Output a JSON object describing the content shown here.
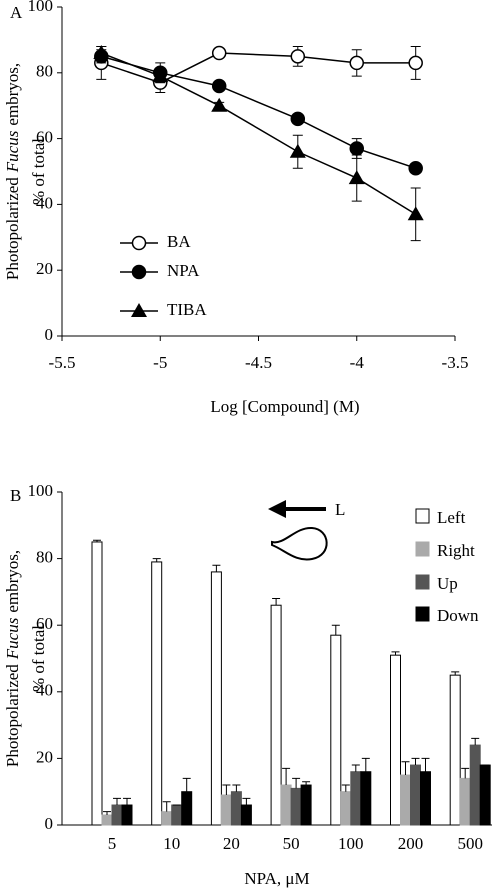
{
  "chart_data": [
    {
      "type": "line",
      "panel_label": "A",
      "ylabel": [
        "Photopolarized",
        "Fucus",
        "embryos,",
        "% of total"
      ],
      "xlabel": "Log [Compound] (M)",
      "x": [
        -5.3,
        -5,
        -4.7,
        -4.3,
        -4,
        -3.7
      ],
      "series": [
        {
          "name": "BA",
          "color": "#000000",
          "marker": "open-circle",
          "values": [
            83,
            77,
            86,
            85,
            83,
            83
          ],
          "errors": [
            5,
            3,
            1,
            3,
            4,
            5
          ]
        },
        {
          "name": "NPA",
          "color": "#000000",
          "marker": "circle",
          "values": [
            85,
            80,
            76,
            66,
            57,
            51
          ],
          "errors": [
            2,
            3,
            1,
            1,
            3,
            1
          ]
        },
        {
          "name": "TIBA",
          "color": "#000000",
          "marker": "triangle",
          "values": [
            86,
            79,
            70,
            56,
            48,
            37
          ],
          "errors": [
            2,
            2,
            1,
            5,
            7,
            8
          ]
        }
      ],
      "xlim": [
        -5.5,
        -3.5
      ],
      "xticks": [
        -5.5,
        -5,
        -4.5,
        -4,
        -3.5
      ],
      "ylim": [
        0,
        100
      ],
      "yticks": [
        0,
        20,
        40,
        60,
        80,
        100
      ]
    },
    {
      "type": "bar",
      "panel_label": "B",
      "ylabel": [
        "Photopolarized",
        "Fucus",
        "embryos,",
        "% of total"
      ],
      "xlabel": "NPA,  μM",
      "annotation": "L",
      "categories": [
        "5",
        "10",
        "20",
        "50",
        "100",
        "200",
        "500"
      ],
      "series": [
        {
          "name": "Left",
          "color": "#ffffff",
          "values": [
            85,
            79,
            76,
            66,
            57,
            51,
            45
          ],
          "errors": [
            0.5,
            1,
            2,
            2,
            3,
            1,
            1
          ]
        },
        {
          "name": "Right",
          "color": "#aaaaaa",
          "values": [
            3,
            4,
            9,
            12,
            10,
            15,
            14
          ],
          "errors": [
            1,
            3,
            3,
            5,
            2,
            4,
            3
          ]
        },
        {
          "name": "Up",
          "color": "#555555",
          "values": [
            6,
            6,
            10,
            11,
            16,
            18,
            24
          ],
          "errors": [
            2,
            0,
            2,
            3,
            2,
            2,
            2
          ]
        },
        {
          "name": "Down",
          "color": "#000000",
          "values": [
            6,
            10,
            6,
            12,
            16,
            16,
            18
          ],
          "errors": [
            2,
            4,
            2,
            1,
            4,
            4,
            0
          ]
        }
      ],
      "ylim": [
        0,
        100
      ],
      "yticks": [
        0,
        20,
        40,
        60,
        80,
        100
      ]
    }
  ]
}
